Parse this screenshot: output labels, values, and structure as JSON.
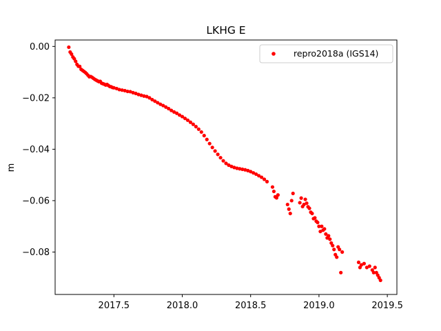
{
  "colors": {
    "series": "#ff0000",
    "axes": "#000000",
    "background": "#ffffff",
    "legend_border": "#cccccc"
  },
  "chart_data": {
    "type": "scatter",
    "title": "LKHG E",
    "xlabel": "",
    "ylabel": "m",
    "xlim": [
      2017.07,
      2019.57
    ],
    "ylim": [
      -0.0965,
      0.0025
    ],
    "x_ticks": [
      2017.5,
      2018.0,
      2018.5,
      2019.0,
      2019.5
    ],
    "x_tick_labels": [
      "2017.5",
      "2018.0",
      "2018.5",
      "2019.0",
      "2019.5"
    ],
    "y_ticks": [
      0.0,
      -0.02,
      -0.04,
      -0.06,
      -0.08
    ],
    "y_tick_labels": [
      "0.00",
      "−0.02",
      "−0.04",
      "−0.06",
      "−0.08"
    ],
    "grid": false,
    "legend_position": "top-right",
    "series": [
      {
        "name": "repro2018a (IGS14)",
        "marker": "circle",
        "points": [
          [
            2017.17,
            -0.0003
          ],
          [
            2017.18,
            -0.0022
          ],
          [
            2017.19,
            -0.003
          ],
          [
            2017.2,
            -0.0041
          ],
          [
            2017.21,
            -0.0048
          ],
          [
            2017.22,
            -0.0058
          ],
          [
            2017.23,
            -0.007
          ],
          [
            2017.24,
            -0.0077
          ],
          [
            2017.25,
            -0.0078
          ],
          [
            2017.26,
            -0.0089
          ],
          [
            2017.27,
            -0.0093
          ],
          [
            2017.28,
            -0.0097
          ],
          [
            2017.29,
            -0.0101
          ],
          [
            2017.3,
            -0.0106
          ],
          [
            2017.31,
            -0.0112
          ],
          [
            2017.32,
            -0.0118
          ],
          [
            2017.33,
            -0.0117
          ],
          [
            2017.34,
            -0.012
          ],
          [
            2017.35,
            -0.0124
          ],
          [
            2017.36,
            -0.0128
          ],
          [
            2017.37,
            -0.0131
          ],
          [
            2017.38,
            -0.0134
          ],
          [
            2017.39,
            -0.0137
          ],
          [
            2017.4,
            -0.0136
          ],
          [
            2017.41,
            -0.0143
          ],
          [
            2017.42,
            -0.0145
          ],
          [
            2017.43,
            -0.0147
          ],
          [
            2017.44,
            -0.015
          ],
          [
            2017.45,
            -0.0148
          ],
          [
            2017.46,
            -0.0152
          ],
          [
            2017.47,
            -0.0156
          ],
          [
            2017.48,
            -0.0157
          ],
          [
            2017.49,
            -0.016
          ],
          [
            2017.5,
            -0.0161
          ],
          [
            2017.52,
            -0.0164
          ],
          [
            2017.54,
            -0.0168
          ],
          [
            2017.56,
            -0.017
          ],
          [
            2017.58,
            -0.0172
          ],
          [
            2017.6,
            -0.0175
          ],
          [
            2017.62,
            -0.0176
          ],
          [
            2017.64,
            -0.018
          ],
          [
            2017.66,
            -0.0183
          ],
          [
            2017.68,
            -0.0187
          ],
          [
            2017.7,
            -0.019
          ],
          [
            2017.72,
            -0.0193
          ],
          [
            2017.74,
            -0.0195
          ],
          [
            2017.76,
            -0.02
          ],
          [
            2017.78,
            -0.0207
          ],
          [
            2017.8,
            -0.0213
          ],
          [
            2017.82,
            -0.0219
          ],
          [
            2017.84,
            -0.0225
          ],
          [
            2017.86,
            -0.023
          ],
          [
            2017.88,
            -0.0236
          ],
          [
            2017.9,
            -0.0242
          ],
          [
            2017.92,
            -0.0249
          ],
          [
            2017.94,
            -0.0255
          ],
          [
            2017.96,
            -0.026
          ],
          [
            2017.98,
            -0.0267
          ],
          [
            2018.0,
            -0.0273
          ],
          [
            2018.02,
            -0.028
          ],
          [
            2018.04,
            -0.0287
          ],
          [
            2018.06,
            -0.0295
          ],
          [
            2018.08,
            -0.0303
          ],
          [
            2018.1,
            -0.0312
          ],
          [
            2018.12,
            -0.0322
          ],
          [
            2018.14,
            -0.0333
          ],
          [
            2018.16,
            -0.0347
          ],
          [
            2018.18,
            -0.0362
          ],
          [
            2018.2,
            -0.0378
          ],
          [
            2018.22,
            -0.0393
          ],
          [
            2018.24,
            -0.0407
          ],
          [
            2018.26,
            -0.042
          ],
          [
            2018.28,
            -0.0433
          ],
          [
            2018.3,
            -0.0445
          ],
          [
            2018.32,
            -0.0455
          ],
          [
            2018.34,
            -0.0462
          ],
          [
            2018.36,
            -0.0467
          ],
          [
            2018.38,
            -0.0471
          ],
          [
            2018.4,
            -0.0474
          ],
          [
            2018.42,
            -0.0476
          ],
          [
            2018.44,
            -0.0478
          ],
          [
            2018.46,
            -0.048
          ],
          [
            2018.48,
            -0.0483
          ],
          [
            2018.5,
            -0.0487
          ],
          [
            2018.52,
            -0.0492
          ],
          [
            2018.54,
            -0.0497
          ],
          [
            2018.56,
            -0.0503
          ],
          [
            2018.58,
            -0.0509
          ],
          [
            2018.6,
            -0.0517
          ],
          [
            2018.62,
            -0.0526
          ],
          [
            2018.66,
            -0.0547
          ],
          [
            2018.67,
            -0.0564
          ],
          [
            2018.68,
            -0.0585
          ],
          [
            2018.69,
            -0.0589
          ],
          [
            2018.7,
            -0.0578
          ],
          [
            2018.77,
            -0.0615
          ],
          [
            2018.78,
            -0.0633
          ],
          [
            2018.79,
            -0.065
          ],
          [
            2018.8,
            -0.06
          ],
          [
            2018.81,
            -0.0572
          ],
          [
            2018.86,
            -0.0608
          ],
          [
            2018.87,
            -0.059
          ],
          [
            2018.88,
            -0.0623
          ],
          [
            2018.89,
            -0.0615
          ],
          [
            2018.9,
            -0.0595
          ],
          [
            2018.91,
            -0.061
          ],
          [
            2018.92,
            -0.0624
          ],
          [
            2018.93,
            -0.063
          ],
          [
            2018.94,
            -0.0645
          ],
          [
            2018.95,
            -0.065
          ],
          [
            2018.96,
            -0.067
          ],
          [
            2018.97,
            -0.0667
          ],
          [
            2018.98,
            -0.068
          ],
          [
            2018.99,
            -0.0685
          ],
          [
            2019.0,
            -0.07
          ],
          [
            2019.01,
            -0.072
          ],
          [
            2019.02,
            -0.07
          ],
          [
            2019.03,
            -0.0715
          ],
          [
            2019.04,
            -0.071
          ],
          [
            2019.05,
            -0.073
          ],
          [
            2019.06,
            -0.0745
          ],
          [
            2019.07,
            -0.0737
          ],
          [
            2019.08,
            -0.075
          ],
          [
            2019.09,
            -0.0765
          ],
          [
            2019.1,
            -0.0775
          ],
          [
            2019.11,
            -0.079
          ],
          [
            2019.12,
            -0.081
          ],
          [
            2019.13,
            -0.082
          ],
          [
            2019.14,
            -0.078
          ],
          [
            2019.15,
            -0.079
          ],
          [
            2019.16,
            -0.088
          ],
          [
            2019.17,
            -0.08
          ],
          [
            2019.29,
            -0.084
          ],
          [
            2019.3,
            -0.086
          ],
          [
            2019.31,
            -0.085
          ],
          [
            2019.33,
            -0.0845
          ],
          [
            2019.35,
            -0.086
          ],
          [
            2019.37,
            -0.0855
          ],
          [
            2019.39,
            -0.087
          ],
          [
            2019.4,
            -0.088
          ],
          [
            2019.41,
            -0.086
          ],
          [
            2019.42,
            -0.088
          ],
          [
            2019.43,
            -0.089
          ],
          [
            2019.44,
            -0.09
          ],
          [
            2019.45,
            -0.091
          ]
        ]
      }
    ]
  }
}
